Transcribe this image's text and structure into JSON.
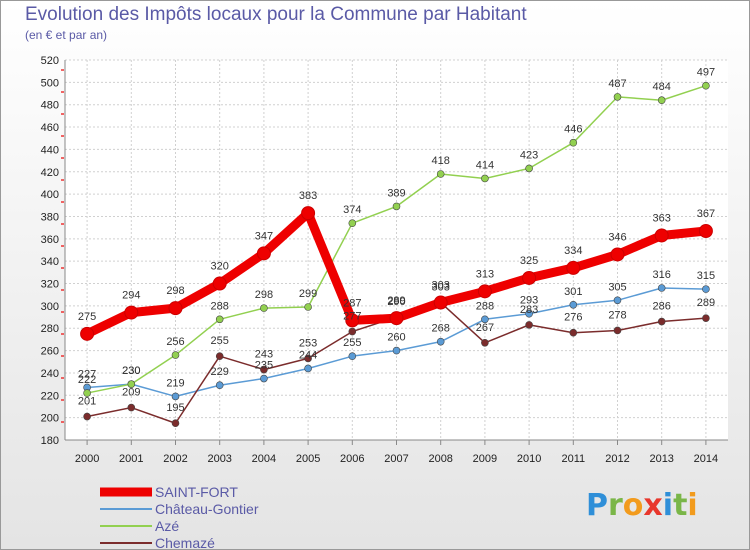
{
  "title": "Evolution des Impôts locaux pour la Commune par Habitant",
  "subtitle": "(en € et par an)",
  "logo": {
    "letters": [
      "P",
      "r",
      "o",
      "x",
      "i",
      "t",
      "i"
    ],
    "colors": [
      "#2f8fd8",
      "#7ab648",
      "#f29b1d",
      "#e8372c",
      "#2f8fd8",
      "#7ab648",
      "#f29b1d"
    ]
  },
  "chart_data": {
    "type": "line",
    "x": [
      "2000",
      "2001",
      "2002",
      "2003",
      "2004",
      "2005",
      "2006",
      "2007",
      "2008",
      "2009",
      "2010",
      "2011",
      "2012",
      "2013",
      "2014"
    ],
    "ylim": [
      180,
      520
    ],
    "yticks": [
      180,
      200,
      220,
      240,
      260,
      280,
      300,
      320,
      340,
      360,
      380,
      400,
      420,
      440,
      460,
      480,
      500,
      520
    ],
    "grid": true,
    "legend": "bottom-left",
    "series": [
      {
        "name": "SAINT-FORT",
        "color": "#ee0000",
        "values": [
          275,
          294,
          298,
          320,
          347,
          383,
          287,
          289,
          303,
          313,
          325,
          334,
          346,
          363,
          367
        ]
      },
      {
        "name": "Château-Gontier",
        "color": "#5b9bd5",
        "values": [
          227,
          230,
          219,
          229,
          235,
          244,
          255,
          260,
          268,
          288,
          293,
          301,
          305,
          316,
          315
        ]
      },
      {
        "name": "Azé",
        "color": "#92d050",
        "values": [
          222,
          230,
          256,
          288,
          298,
          299,
          374,
          389,
          418,
          414,
          423,
          446,
          487,
          484,
          497
        ]
      },
      {
        "name": "Chemazé",
        "color": "#7b2c2c",
        "values": [
          201,
          209,
          195,
          255,
          243,
          253,
          277,
          290,
          303,
          267,
          283,
          276,
          278,
          286,
          289
        ]
      }
    ]
  }
}
